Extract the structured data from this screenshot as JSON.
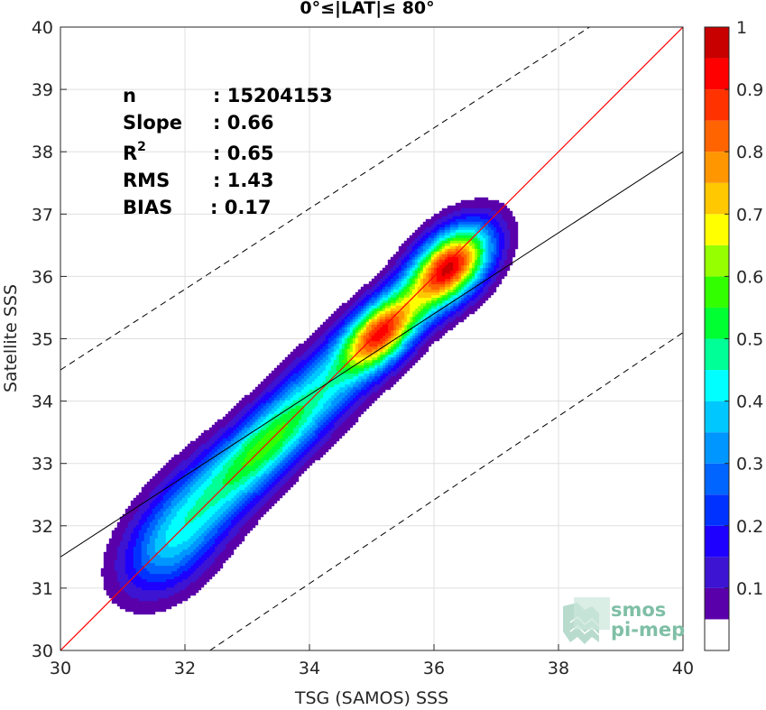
{
  "chart_data": {
    "type": "contour",
    "title": "0°≤|LAT|≤ 80°",
    "xlabel": "TSG (SAMOS) SSS",
    "ylabel": "Satellite SSS",
    "xlim": [
      30,
      40
    ],
    "ylim": [
      30,
      40
    ],
    "xticks": [
      "30",
      "32",
      "34",
      "36",
      "38",
      "40"
    ],
    "yticks": [
      "30",
      "31",
      "32",
      "33",
      "34",
      "35",
      "36",
      "37",
      "38",
      "39",
      "40"
    ],
    "grid": true,
    "stats": [
      {
        "key": "n",
        "value": ": 15204153"
      },
      {
        "key": "Slope",
        "value": ": 0.66"
      },
      {
        "key": "R",
        "sup": "2",
        "value": ": 0.65"
      },
      {
        "key": "RMS",
        "value": ": 1.43"
      },
      {
        "key": "BIAS",
        "value": ": 0.17"
      }
    ],
    "lines": {
      "one_to_one": {
        "slope": 1,
        "intercept": 0,
        "color": "#ff0000"
      },
      "regression": {
        "slope": 0.66,
        "points": [
          [
            30,
            31.5
          ],
          [
            40,
            38.0
          ]
        ],
        "color": "#000000"
      },
      "upper_dashed": {
        "points": [
          [
            30,
            34.5
          ],
          [
            38.5,
            40
          ]
        ],
        "color": "#000000"
      },
      "lower_dashed": {
        "points": [
          [
            32.4,
            30
          ],
          [
            40,
            35.1
          ]
        ],
        "color": "#000000"
      }
    },
    "density_peaks": [
      {
        "x": 36.25,
        "y": 36.15,
        "value": 0.95
      },
      {
        "x": 35.15,
        "y": 35.1,
        "value": 0.85
      },
      {
        "x": 33.3,
        "y": 33.3,
        "value": 0.45
      },
      {
        "x": 32.2,
        "y": 32.3,
        "value": 0.35
      }
    ],
    "colorbar": {
      "ticks": [
        "0.1",
        "0.2",
        "0.3",
        "0.4",
        "0.5",
        "0.6",
        "0.7",
        "0.8",
        "0.9",
        "1"
      ],
      "levels": [
        0,
        0.05,
        0.1,
        0.15,
        0.2,
        0.25,
        0.3,
        0.35,
        0.4,
        0.45,
        0.5,
        0.55,
        0.6,
        0.65,
        0.7,
        0.75,
        0.8,
        0.85,
        0.9,
        0.95,
        1.0
      ],
      "colors": [
        "#ffffff",
        "#5a00aa",
        "#3c14d2",
        "#1e00ff",
        "#0032ff",
        "#0064ff",
        "#0096ff",
        "#00c8ff",
        "#00ffff",
        "#00ff96",
        "#00ff32",
        "#32ff00",
        "#96ff00",
        "#ffff00",
        "#ffc800",
        "#ff9600",
        "#ff6400",
        "#ff3200",
        "#ff0000",
        "#c80000"
      ]
    }
  },
  "logo": {
    "line1": "smos",
    "line2": "pi-mep"
  }
}
